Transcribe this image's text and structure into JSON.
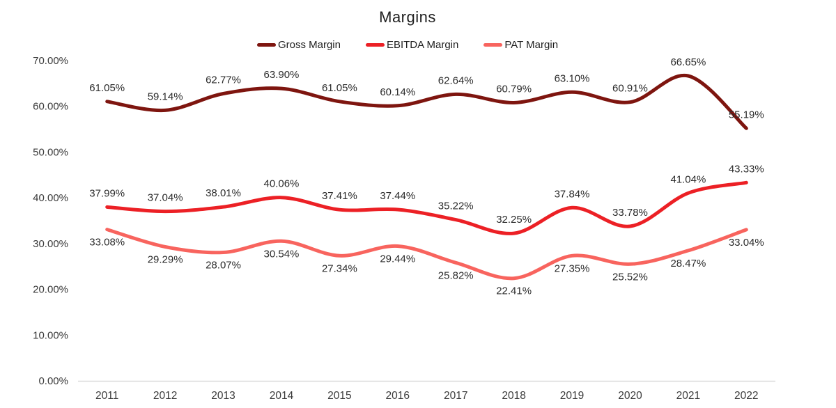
{
  "chart": {
    "title": "Margins"
  },
  "chart_data": {
    "type": "line",
    "title": "Margins",
    "subtitle": "",
    "categories": [
      "2011",
      "2012",
      "2013",
      "2014",
      "2015",
      "2016",
      "2017",
      "2018",
      "2019",
      "2020",
      "2021",
      "2022"
    ],
    "series": [
      {
        "name": "Gross Margin",
        "color": "#7E150F",
        "values": [
          61.05,
          59.14,
          62.77,
          63.9,
          61.05,
          60.14,
          62.64,
          60.79,
          63.1,
          60.91,
          66.65,
          55.19
        ],
        "label_position": "above"
      },
      {
        "name": "EBITDA Margin",
        "color": "#EC2025",
        "values": [
          37.99,
          37.04,
          38.01,
          40.06,
          37.41,
          37.44,
          35.22,
          32.25,
          37.84,
          33.78,
          41.04,
          43.33
        ],
        "label_position": "above"
      },
      {
        "name": "PAT Margin",
        "color": "#F8645E",
        "values": [
          33.08,
          29.29,
          28.07,
          30.54,
          27.34,
          29.44,
          25.82,
          22.41,
          27.35,
          25.52,
          28.47,
          33.04
        ],
        "label_position": "below"
      }
    ],
    "y_ticks": [
      "70.00%",
      "60.00%",
      "50.00%",
      "40.00%",
      "30.00%",
      "20.00%",
      "10.00%",
      "0.00%"
    ],
    "ylim": [
      0,
      70
    ],
    "xlabel": "",
    "ylabel": "",
    "data_label_format": "0.00%",
    "grid": false,
    "smooth": true,
    "legend_position": "top",
    "axis_line_color": "#D9D9D9",
    "text_color": "#2b2b2b"
  }
}
